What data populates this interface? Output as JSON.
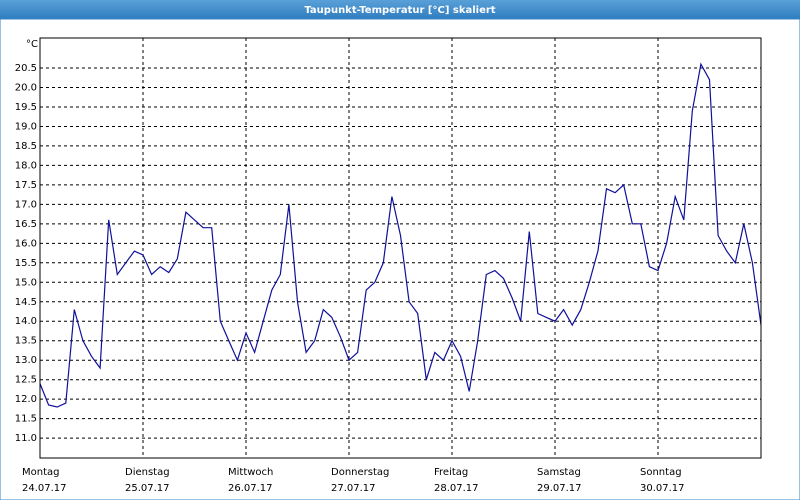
{
  "chart_data": {
    "type": "line",
    "title": "Taupunkt-Temperatur [°C] skaliert",
    "y_unit": "°C",
    "color": "#10109a",
    "grid": true,
    "x": [
      0,
      2,
      4,
      6,
      8,
      10,
      12,
      14,
      16,
      18,
      20,
      22,
      24,
      26,
      28,
      30,
      32,
      34,
      36,
      38,
      40,
      42,
      44,
      46,
      48,
      50,
      52,
      54,
      56,
      58,
      60,
      62,
      64,
      66,
      68,
      70,
      72,
      74,
      76,
      78,
      80,
      82,
      84,
      86,
      88,
      90,
      92,
      94,
      96,
      98,
      100,
      102,
      104,
      106,
      108,
      110,
      112,
      114,
      116,
      118,
      120,
      122,
      124,
      126,
      128,
      130,
      132,
      134,
      136,
      138,
      140,
      142,
      144,
      146,
      148,
      150,
      152,
      154,
      156,
      158,
      160,
      162,
      164,
      166,
      168
    ],
    "values": [
      12.4,
      11.85,
      11.8,
      11.9,
      14.3,
      13.5,
      13.1,
      12.8,
      16.6,
      15.2,
      15.5,
      15.8,
      15.7,
      15.2,
      15.4,
      15.25,
      15.6,
      16.8,
      16.6,
      16.4,
      16.4,
      14.0,
      13.5,
      13.0,
      13.7,
      13.2,
      14.0,
      14.8,
      15.2,
      17.0,
      14.5,
      13.2,
      13.5,
      14.3,
      14.1,
      13.6,
      13.0,
      13.2,
      14.8,
      15.0,
      15.5,
      17.2,
      16.2,
      14.5,
      14.2,
      12.5,
      13.2,
      13.0,
      13.5,
      13.1,
      12.2,
      13.5,
      15.2,
      15.3,
      15.1,
      14.6,
      14.0,
      16.3,
      14.2,
      14.1,
      14.0,
      14.3,
      13.9,
      14.3,
      15.0,
      15.8,
      17.4,
      17.3,
      17.5,
      16.5,
      16.5,
      15.4,
      15.3,
      16.0,
      17.2,
      16.6,
      19.4,
      20.6,
      20.2,
      16.2,
      15.8,
      15.5,
      16.5,
      15.5,
      13.9
    ],
    "xlim": [
      0,
      168
    ],
    "xticks": [
      {
        "value": 0,
        "label": [
          "Montag",
          "24.07.17"
        ]
      },
      {
        "value": 24,
        "label": [
          "Dienstag",
          "25.07.17"
        ]
      },
      {
        "value": 48,
        "label": [
          "Mittwoch",
          "26.07.17"
        ]
      },
      {
        "value": 72,
        "label": [
          "Donnerstag",
          "27.07.17"
        ]
      },
      {
        "value": 96,
        "label": [
          "Freitag",
          "28.07.17"
        ]
      },
      {
        "value": 120,
        "label": [
          "Samstag",
          "29.07.17"
        ]
      },
      {
        "value": 144,
        "label": [
          "Sonntag",
          "30.07.17"
        ]
      }
    ],
    "ylim": [
      10.49,
      21.27
    ],
    "yticks": [
      {
        "value": 11,
        "label": "11.0"
      },
      11.5,
      {
        "value": 12,
        "label": "12.0"
      },
      12.5,
      {
        "value": 13,
        "label": "13.0"
      },
      13.5,
      {
        "value": 14,
        "label": "14.0"
      },
      14.5,
      {
        "value": 15,
        "label": "15.0"
      },
      15.5,
      {
        "value": 16,
        "label": "16.0"
      },
      16.5,
      {
        "value": 17,
        "label": "17.0"
      },
      17.5,
      {
        "value": 18,
        "label": "18.0"
      },
      18.5,
      {
        "value": 19,
        "label": "19.0"
      },
      19.5,
      {
        "value": 20,
        "label": "20.0"
      },
      20.5
    ]
  }
}
